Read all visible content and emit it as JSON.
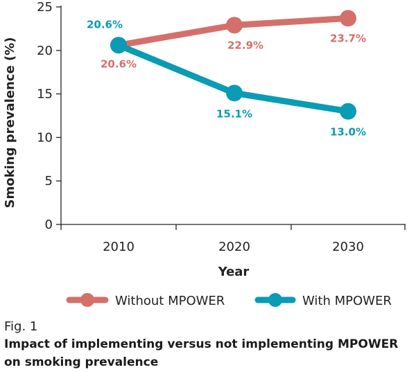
{
  "chart_data": {
    "type": "line",
    "x": [
      2010,
      2020,
      2030
    ],
    "xlabel": "Year",
    "ylabel": "Smoking prevalence (%)",
    "ylim": [
      0,
      25
    ],
    "yticks": [
      0,
      5,
      10,
      15,
      20,
      25
    ],
    "grid": false,
    "legend_position": "bottom",
    "series": [
      {
        "name": "Without MPOWER",
        "color": "#d4706a",
        "values": [
          20.6,
          22.9,
          23.7
        ],
        "labels": [
          "20.6%",
          "22.9%",
          "23.7%"
        ]
      },
      {
        "name": "With MPOWER",
        "color": "#0a9bb5",
        "values": [
          20.6,
          15.1,
          13.0
        ],
        "labels": [
          "20.6%",
          "15.1%",
          "13.0%"
        ]
      }
    ]
  },
  "caption": {
    "fig_label": "Fig. 1",
    "title": "Impact of implementing versus not implementing MPOWER on smoking prevalence"
  }
}
